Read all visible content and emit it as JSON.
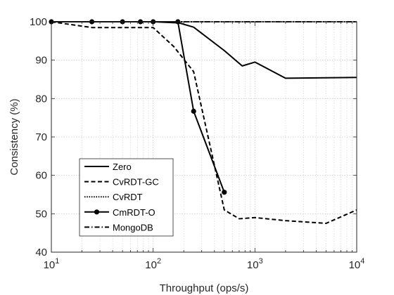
{
  "chart_data": {
    "type": "line",
    "xlabel": "Throughput (ops/s)",
    "ylabel": "Consistency (%)",
    "xscale": "log",
    "xlim": [
      10,
      10000
    ],
    "ylim": [
      40,
      100
    ],
    "grid": "on (log x minor gridlines)",
    "legend_position": "lower-left",
    "x_tick_labels": [
      {
        "value": 10,
        "base": "10",
        "exp": "1"
      },
      {
        "value": 100,
        "base": "10",
        "exp": "2"
      },
      {
        "value": 1000,
        "base": "10",
        "exp": "3"
      },
      {
        "value": 10000,
        "base": "10",
        "exp": "4"
      }
    ],
    "y_ticks": [
      40,
      50,
      60,
      70,
      80,
      90,
      100
    ],
    "series": [
      {
        "name": "Zero",
        "style": "solid",
        "marker": "none",
        "x": [
          10,
          100,
          180,
          250,
          500,
          750,
          1000,
          2000,
          10000
        ],
        "y": [
          100,
          100,
          99.7,
          98.6,
          92.5,
          88.5,
          89.5,
          85.3,
          85.5
        ]
      },
      {
        "name": "CvRDT-GC",
        "style": "dashed",
        "marker": "none",
        "x": [
          10,
          25,
          50,
          100,
          160,
          250,
          500,
          700,
          1000,
          2000,
          5000,
          10000
        ],
        "y": [
          100,
          98.5,
          98.5,
          98.5,
          93.5,
          87,
          51,
          48.7,
          49,
          48.2,
          47.5,
          51
        ]
      },
      {
        "name": "CvRDT",
        "style": "dotted",
        "marker": "none",
        "x": [
          10,
          10000
        ],
        "y": [
          100,
          100
        ]
      },
      {
        "name": "CmRDT-O",
        "style": "solid",
        "marker": "circle",
        "x": [
          10,
          25,
          50,
          75,
          100,
          175,
          250,
          500
        ],
        "y": [
          100,
          100,
          100,
          100,
          100,
          100,
          76.7,
          55.6
        ]
      },
      {
        "name": "MongoDB",
        "style": "dashdot",
        "marker": "none",
        "x": [
          10,
          10000
        ],
        "y": [
          100,
          100
        ]
      }
    ]
  }
}
